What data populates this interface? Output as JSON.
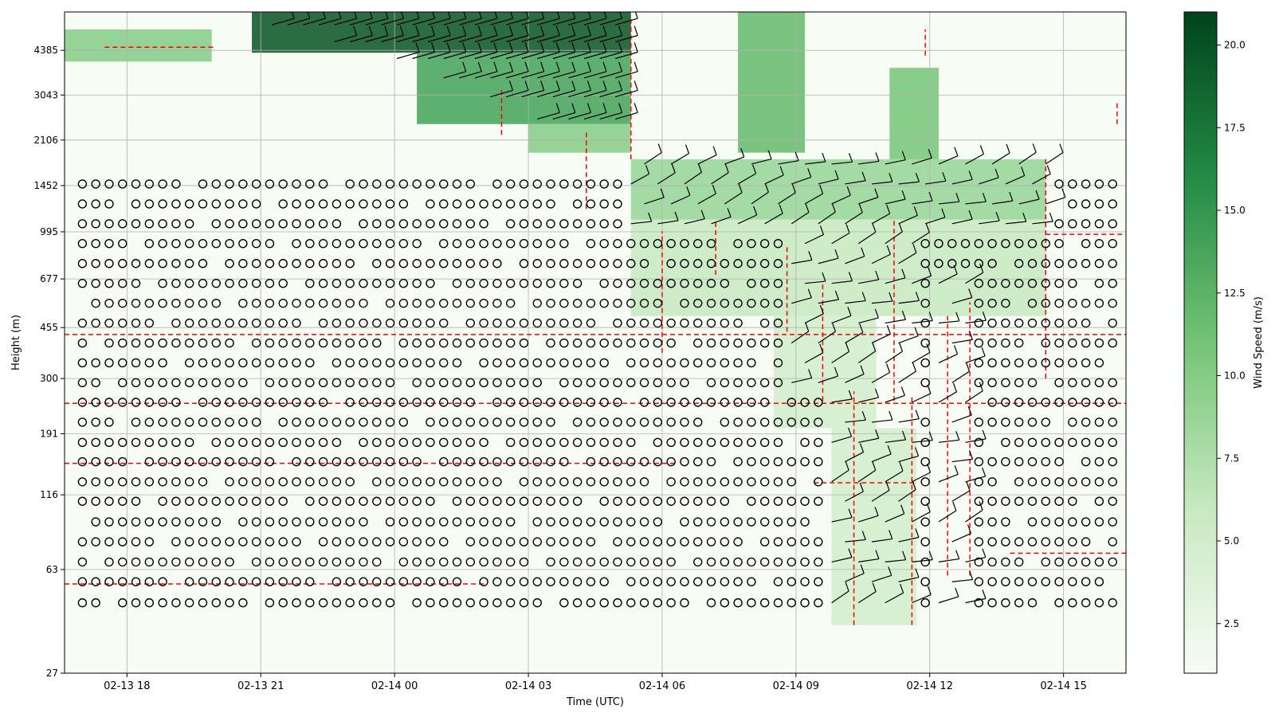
{
  "chart_data": {
    "type": "heatmap",
    "title": "",
    "xlabel": "Time (UTC)",
    "ylabel": "Height (m)",
    "colorbar_label": "Wind Speed (m/s)",
    "colormap": "Greens",
    "colorbar_range": [
      1.0,
      21.0
    ],
    "colorbar_ticks": [
      "2.5",
      "5.0",
      "7.5",
      "10.0",
      "12.5",
      "15.0",
      "17.5",
      "20.0"
    ],
    "colorbar_tick_values": [
      2.5,
      5.0,
      7.5,
      10.0,
      12.5,
      15.0,
      17.5,
      20.0
    ],
    "x_ticks": [
      "02-13 18",
      "02-13 21",
      "02-14 00",
      "02-14 03",
      "02-14 06",
      "02-14 09",
      "02-14 12",
      "02-14 15"
    ],
    "x_range_hours": [
      16.6,
      40.4
    ],
    "y_scale": "log",
    "y_ticks": [
      "27",
      "63",
      "116",
      "191",
      "300",
      "455",
      "677",
      "995",
      "1452",
      "2106",
      "3043",
      "4385"
    ],
    "y_range_m": [
      27,
      6000
    ],
    "grid": true,
    "legend": "none",
    "series": [
      {
        "values": "wind speed shading (m/s)"
      },
      {
        "values": "wind barbs (black)"
      },
      {
        "values": "open circles = calm / missing"
      },
      {
        "values": "red dashed contour"
      }
    ],
    "wind_regions": [
      {
        "t": [
          20.8,
          29.3
        ],
        "h": [
          4300,
          6000
        ],
        "speed": 20
      },
      {
        "t": [
          24.5,
          29.3
        ],
        "h": [
          2400,
          4300
        ],
        "speed": 14
      },
      {
        "t": [
          27.0,
          29.3
        ],
        "h": [
          1900,
          2400
        ],
        "speed": 10
      },
      {
        "t": [
          16.6,
          19.9
        ],
        "h": [
          4000,
          5200
        ],
        "speed": 10
      },
      {
        "t": [
          31.7,
          33.2
        ],
        "h": [
          1900,
          6000
        ],
        "speed": 12
      },
      {
        "t": [
          29.3,
          38.6
        ],
        "h": [
          1100,
          1800
        ],
        "speed": 9
      },
      {
        "t": [
          29.3,
          38.6
        ],
        "h": [
          500,
          1100
        ],
        "speed": 6
      },
      {
        "t": [
          35.1,
          36.2
        ],
        "h": [
          1800,
          3800
        ],
        "speed": 11
      },
      {
        "t": [
          32.5,
          34.8
        ],
        "h": [
          200,
          500
        ],
        "speed": 5
      },
      {
        "t": [
          33.8,
          35.7
        ],
        "h": [
          40,
          200
        ],
        "speed": 5
      }
    ]
  }
}
